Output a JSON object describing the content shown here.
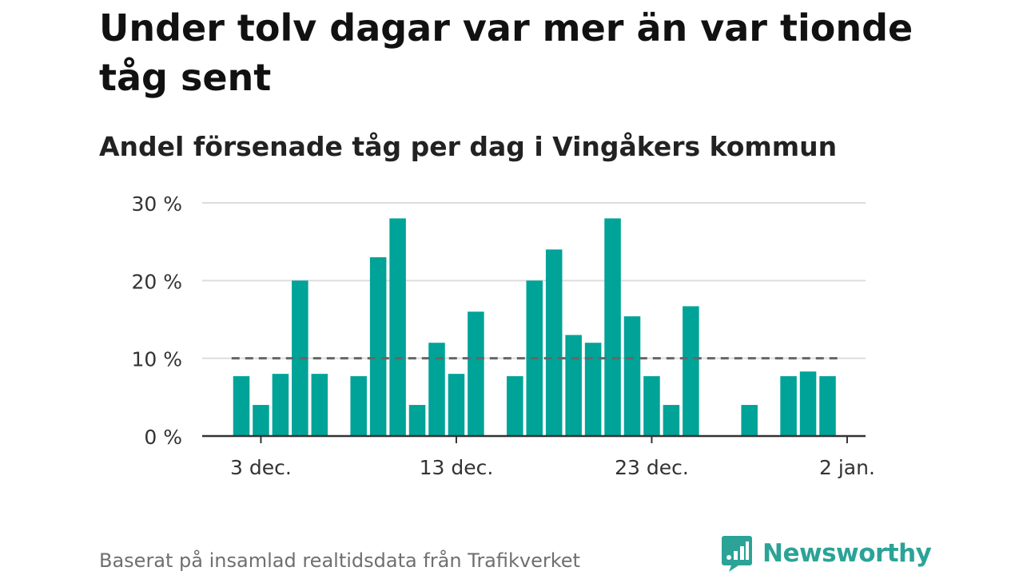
{
  "title": "Under tolv dagar var mer än var tionde tåg sent",
  "subtitle": "Andel försenade tåg per dag i Vingåkers kommun",
  "footer": "Baserat på insamlad realtidsdata från Trafikverket",
  "brand": {
    "name": "Newsworthy",
    "icon": "newsworthy-logo-icon"
  },
  "colors": {
    "bar": "#00a398",
    "reference_line": "#666666",
    "grid": "#dddddd",
    "axis": "#333333",
    "brand": "#2ba397"
  },
  "chart_data": {
    "type": "bar",
    "x_type": "date",
    "x": [
      "2023-12-02",
      "2023-12-03",
      "2023-12-04",
      "2023-12-05",
      "2023-12-06",
      "2023-12-07",
      "2023-12-08",
      "2023-12-09",
      "2023-12-10",
      "2023-12-11",
      "2023-12-12",
      "2023-12-13",
      "2023-12-14",
      "2023-12-15",
      "2023-12-16",
      "2023-12-17",
      "2023-12-18",
      "2023-12-19",
      "2023-12-20",
      "2023-12-21",
      "2023-12-22",
      "2023-12-23",
      "2023-12-24",
      "2023-12-25",
      "2023-12-26",
      "2023-12-27",
      "2023-12-28",
      "2023-12-29",
      "2023-12-30",
      "2023-12-31",
      "2024-01-01"
    ],
    "values": [
      7.7,
      4,
      8,
      20,
      8,
      null,
      7.7,
      23,
      28,
      4,
      12,
      8,
      16,
      null,
      7.7,
      20,
      24,
      13,
      12,
      28,
      15.4,
      7.7,
      4,
      16.7,
      null,
      null,
      4,
      null,
      7.7,
      8.3,
      7.7
    ],
    "unit": "%",
    "ylim": [
      0,
      30
    ],
    "y_ticks": [
      0,
      10,
      20,
      30
    ],
    "y_tick_labels": [
      "0 %",
      "10 %",
      "20 %",
      "30 %"
    ],
    "x_ticks": [
      "2023-12-03",
      "2023-12-13",
      "2023-12-23",
      "2024-01-02"
    ],
    "x_tick_labels": [
      "3 dec.",
      "13 dec.",
      "23 dec.",
      "2 jan."
    ],
    "reference_line": {
      "value": 10,
      "style": "dashed"
    },
    "grid": true,
    "legend": false
  }
}
